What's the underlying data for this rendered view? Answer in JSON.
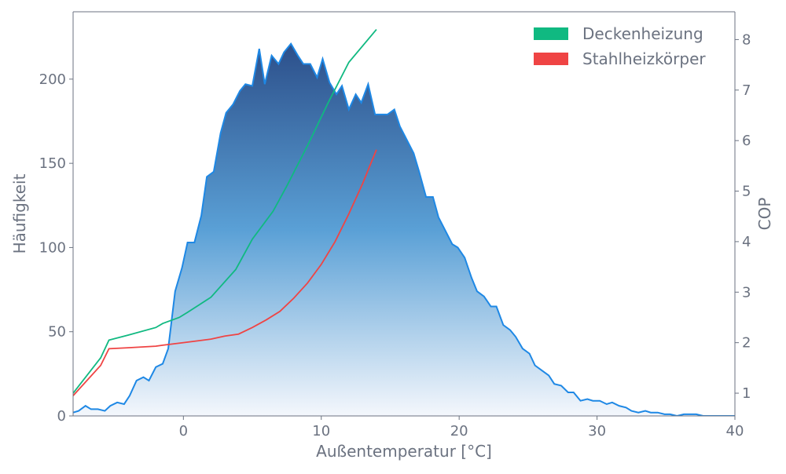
{
  "chart_data": {
    "type": "area",
    "xlabel": "Außentemperatur [°C]",
    "ylabel": "Häufigkeit",
    "y2label": "COP",
    "xlim": [
      -8,
      40
    ],
    "ylim": [
      0,
      240
    ],
    "y2lim": [
      0.55,
      8.55
    ],
    "x_ticks": [
      0,
      10,
      20,
      30,
      40
    ],
    "y_ticks": [
      0,
      50,
      100,
      150,
      200
    ],
    "y2_ticks": [
      1,
      2,
      3,
      4,
      5,
      6,
      7,
      8
    ],
    "grid": false,
    "legend_position": "top-right",
    "colors": {
      "frequency_line": "#1e88e5",
      "fill_top": "#2c4f8a",
      "fill_mid": "#5aa0d6",
      "fill_bottom": "#f4f7fc",
      "deckenheizung": "#10b981",
      "stahlheizkoerper": "#ef4444",
      "axis": "#6b7280"
    },
    "frequency": {
      "x": [
        -8.0,
        -7.6,
        -7.1,
        -6.7,
        -6.2,
        -5.7,
        -5.3,
        -4.8,
        -4.3,
        -3.9,
        -3.4,
        -2.9,
        -2.5,
        -2.0,
        -1.5,
        -1.1,
        -0.6,
        -0.1,
        0.3,
        0.8,
        1.3,
        1.7,
        2.2,
        2.7,
        3.1,
        3.6,
        4.1,
        4.5,
        5.0,
        5.5,
        5.9,
        6.4,
        6.9,
        7.3,
        7.8,
        8.3,
        8.7,
        9.2,
        9.7,
        10.1,
        10.6,
        11.1,
        11.5,
        12.0,
        12.5,
        12.9,
        13.4,
        13.9,
        14.3,
        14.8,
        15.3,
        15.7,
        16.2,
        16.7,
        17.1,
        17.6,
        18.1,
        18.5,
        19.0,
        19.5,
        19.9,
        20.4,
        20.9,
        21.3,
        21.8,
        22.3,
        22.7,
        23.2,
        23.7,
        24.1,
        24.6,
        25.1,
        25.5,
        26.0,
        26.5,
        26.9,
        27.4,
        27.9,
        28.3,
        28.8,
        29.3,
        29.7,
        30.2,
        30.7,
        31.1,
        31.6,
        32.1,
        32.5,
        33.0,
        33.5,
        33.9,
        34.4,
        34.9,
        35.3,
        35.8,
        36.3,
        36.7,
        37.2,
        37.7,
        38.1,
        38.6,
        39.1,
        39.5,
        40.0
      ],
      "y": [
        2,
        3,
        6,
        4,
        4,
        3,
        6,
        8,
        7,
        12,
        21,
        23,
        21,
        29,
        31,
        40,
        74,
        88,
        103,
        103,
        119,
        142,
        145,
        168,
        180,
        185,
        193,
        197,
        196,
        218,
        197,
        214,
        209,
        216,
        221,
        214,
        209,
        209,
        201,
        212,
        198,
        191,
        196,
        182,
        191,
        186,
        197,
        179,
        179,
        179,
        182,
        172,
        164,
        156,
        145,
        130,
        130,
        118,
        110,
        102,
        100,
        94,
        82,
        74,
        71,
        65,
        65,
        54,
        51,
        47,
        40,
        37,
        30,
        27,
        24,
        19,
        18,
        14,
        14,
        9,
        10,
        9,
        9,
        7,
        8,
        6,
        5,
        3,
        2,
        3,
        2,
        2,
        1,
        1,
        0,
        1,
        1,
        1,
        0,
        0,
        0,
        0,
        0,
        0
      ]
    },
    "series": [
      {
        "name": "Deckenheizung",
        "x": [
          -8,
          -6,
          -5.4,
          -4,
          -2,
          -1.5,
          -0.3,
          0.3,
          2,
          3.8,
          5,
          6.5,
          7.5,
          9,
          10.5,
          12,
          14
        ],
        "y": [
          1.0,
          1.7,
          2.05,
          2.15,
          2.3,
          2.38,
          2.5,
          2.6,
          2.9,
          3.45,
          4.05,
          4.6,
          5.1,
          5.9,
          6.75,
          7.55,
          8.2
        ]
      },
      {
        "name": "Stahlheizkörper",
        "x": [
          -8,
          -6,
          -5.4,
          -4,
          -2,
          -1.5,
          0,
          2,
          3,
          4,
          5,
          6,
          7,
          8,
          9,
          10,
          11,
          12,
          13,
          14
        ],
        "y": [
          0.95,
          1.55,
          1.88,
          1.9,
          1.93,
          1.95,
          2.0,
          2.07,
          2.13,
          2.17,
          2.3,
          2.45,
          2.62,
          2.88,
          3.18,
          3.55,
          4.0,
          4.55,
          5.15,
          5.82
        ]
      }
    ]
  }
}
